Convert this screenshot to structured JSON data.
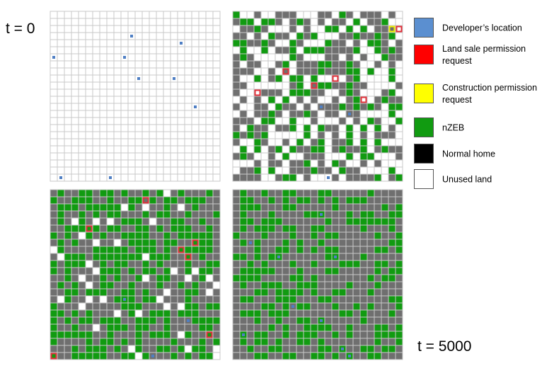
{
  "time_labels": {
    "start": "t = 0",
    "end": "t = 5000"
  },
  "legend": [
    {
      "key": "developer",
      "label": "Developer’s location",
      "color": "#5b8fd0"
    },
    {
      "key": "sale",
      "label": "Land sale permission request",
      "color": "#ff0000"
    },
    {
      "key": "construction",
      "label": "Construction permission request",
      "color": "#ffff00"
    },
    {
      "key": "nzeb",
      "label": "nZEB",
      "color": "#119b11"
    },
    {
      "key": "normal",
      "label": "Normal home",
      "color": "#000000"
    },
    {
      "key": "unused",
      "label": "Unused land",
      "color": "#ffffff"
    }
  ],
  "colors": {
    "unused_cell": "#ffffff",
    "normal_cell": "#6f6f6f",
    "nzeb_cell": "#119b11",
    "grid_line": "#c8c8c8",
    "developer_marker": "#4f7fc4",
    "sale_highlight": "#e0303a",
    "construction_highlight": "#f0f000"
  },
  "grids": [
    {
      "name": "t0",
      "state_counts": {
        "nzeb": 0,
        "normal": 0
      }
    },
    {
      "name": "intermediate-1",
      "state_counts": {
        "nzeb": 0.24,
        "normal": 0.36
      }
    },
    {
      "name": "intermediate-2",
      "state_counts": {
        "nzeb": 0.47,
        "normal": 0.46
      }
    },
    {
      "name": "t5000",
      "state_counts": {
        "nzeb": 0.42,
        "normal": 0.58
      }
    }
  ]
}
